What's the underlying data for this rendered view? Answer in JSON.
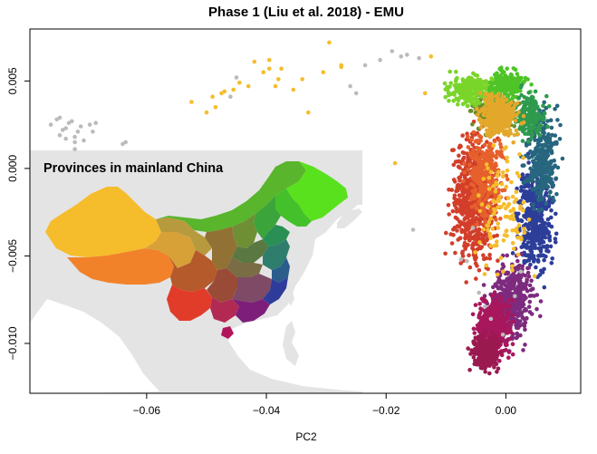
{
  "chart_data": {
    "type": "scatter",
    "title": "Phase 1 (Liu et al. 2018) - EMU",
    "xlabel": "PC2",
    "ylabel": "",
    "xlim": [
      -0.0795,
      0.0125
    ],
    "ylim": [
      -0.01285,
      0.00797
    ],
    "xticks": [
      -0.06,
      -0.04,
      -0.02,
      0.0
    ],
    "xtick_labels": [
      "−0.06",
      "−0.04",
      "−0.02",
      "0.00"
    ],
    "yticks": [
      0.005,
      0.0,
      -0.005,
      -0.01
    ],
    "ytick_labels": [
      "0.005",
      "0.000",
      "−0.005",
      "−0.010"
    ],
    "grid": false,
    "inset": {
      "label": "Provinces in mainland China",
      "content": "map of mainland China with provinces colored by the same palette as the points",
      "background": "#e4e4e4"
    },
    "series": [
      {
        "color": "#bbbbbb",
        "role": "grey",
        "points": [
          [
            -0.076,
            0.0025
          ],
          [
            -0.075,
            0.0028
          ],
          [
            -0.074,
            0.0022
          ],
          [
            -0.073,
            0.0026
          ],
          [
            -0.072,
            0.0018
          ],
          [
            -0.071,
            0.0024
          ],
          [
            -0.0705,
            0.0016
          ],
          [
            -0.0745,
            0.0019
          ],
          [
            -0.0735,
            0.0023
          ],
          [
            -0.0725,
            0.0027
          ],
          [
            -0.0715,
            0.0021
          ],
          [
            -0.072,
            0.0015
          ],
          [
            -0.0695,
            0.0025
          ],
          [
            -0.069,
            0.0021
          ],
          [
            -0.0685,
            0.0026
          ],
          [
            -0.064,
            0.0014
          ],
          [
            -0.0635,
            0.0015
          ],
          [
            -0.072,
            0.0011
          ],
          [
            -0.0745,
            0.0029
          ],
          [
            -0.0735,
            0.0017
          ],
          [
            -0.026,
            0.0047
          ],
          [
            -0.025,
            0.0043
          ],
          [
            -0.0235,
            0.0059
          ],
          [
            -0.019,
            0.0067
          ],
          [
            -0.0175,
            0.0064
          ],
          [
            -0.021,
            0.0062
          ],
          [
            -0.0145,
            0.0063
          ],
          [
            -0.0165,
            0.0065
          ],
          [
            -0.045,
            0.0052
          ],
          [
            -0.046,
            0.0041
          ],
          [
            -0.0155,
            -0.0035
          ],
          [
            -0.0075,
            -0.0052
          ],
          [
            -0.0045,
            -0.0071
          ],
          [
            -0.0025,
            -0.0086
          ],
          [
            -0.0005,
            -0.0095
          ],
          [
            0.0015,
            -0.0073
          ],
          [
            -0.0065,
            -0.0053
          ],
          [
            -0.0035,
            -0.0079
          ],
          [
            0.0025,
            -0.0059
          ],
          [
            -0.0055,
            -0.0034
          ]
        ]
      },
      {
        "color": "#f5bd2b",
        "role": "yellow",
        "points": [
          [
            -0.0525,
            0.0038
          ],
          [
            -0.049,
            0.0041
          ],
          [
            -0.05,
            0.0032
          ],
          [
            -0.0485,
            0.0035
          ],
          [
            -0.0475,
            0.0043
          ],
          [
            -0.047,
            0.0044
          ],
          [
            -0.0455,
            0.0045
          ],
          [
            -0.0445,
            0.0049
          ],
          [
            -0.043,
            0.0047
          ],
          [
            -0.042,
            0.0061
          ],
          [
            -0.0395,
            0.0062
          ],
          [
            -0.0395,
            0.0057
          ],
          [
            -0.0405,
            0.0055
          ],
          [
            -0.038,
            0.0051
          ],
          [
            -0.0375,
            0.0057
          ],
          [
            -0.0385,
            0.0047
          ],
          [
            -0.0355,
            0.0045
          ],
          [
            -0.034,
            0.0051
          ],
          [
            -0.033,
            0.0032
          ],
          [
            -0.0305,
            0.0055
          ],
          [
            -0.0275,
            0.0058
          ],
          [
            -0.0295,
            0.0072
          ],
          [
            -0.0275,
            0.0059
          ],
          [
            -0.0125,
            0.0064
          ],
          [
            -0.0135,
            0.0043
          ],
          [
            -0.0185,
            0.0003
          ]
        ]
      }
    ]
  }
}
